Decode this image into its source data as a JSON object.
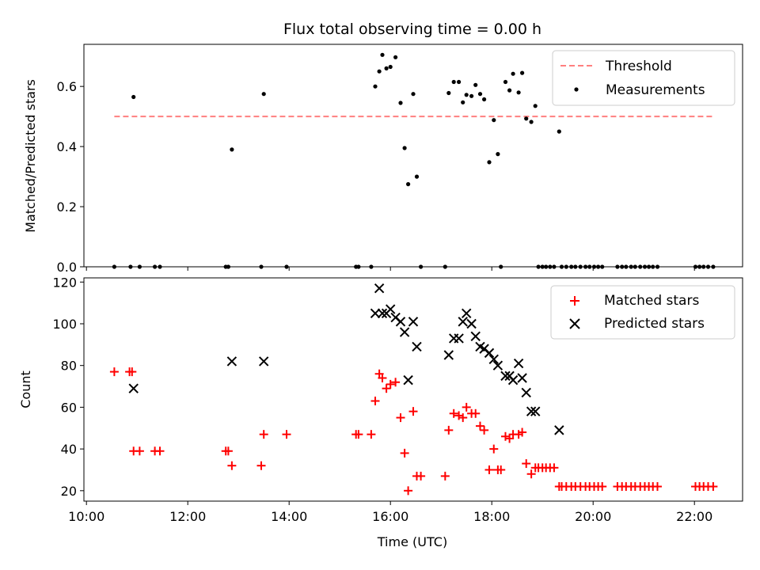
{
  "chart_data": [
    {
      "type": "scatter",
      "title": "Flux total observing time = 0.00 h",
      "xlabel": "",
      "ylabel": "Matched/Predicted stars",
      "xlim_hours": [
        9.95,
        22.95
      ],
      "ylim": [
        0,
        0.74
      ],
      "yticks": [
        0.0,
        0.2,
        0.4,
        0.6
      ],
      "ytick_labels": [
        "0.0",
        "0.2",
        "0.4",
        "0.6"
      ],
      "legend_position": "top-right",
      "threshold": {
        "name": "Threshold",
        "y": 0.5,
        "x_range": [
          10.55,
          22.4
        ],
        "color": "#ff7f7f"
      },
      "series": [
        {
          "name": "Measurements",
          "color": "#000000",
          "marker": "dot",
          "points": [
            [
              10.55,
              0
            ],
            [
              10.87,
              0
            ],
            [
              10.93,
              0.565
            ],
            [
              11.05,
              0
            ],
            [
              11.35,
              0
            ],
            [
              11.45,
              0
            ],
            [
              12.75,
              0
            ],
            [
              12.8,
              0
            ],
            [
              12.87,
              0.39
            ],
            [
              13.45,
              0
            ],
            [
              13.5,
              0.575
            ],
            [
              13.95,
              0
            ],
            [
              15.32,
              0
            ],
            [
              15.37,
              0
            ],
            [
              15.62,
              0
            ],
            [
              15.7,
              0.6
            ],
            [
              15.78,
              0.65
            ],
            [
              15.84,
              0.705
            ],
            [
              15.92,
              0.66
            ],
            [
              16.0,
              0.665
            ],
            [
              16.1,
              0.697
            ],
            [
              16.2,
              0.545
            ],
            [
              16.28,
              0.395
            ],
            [
              16.35,
              0.275
            ],
            [
              16.45,
              0.575
            ],
            [
              16.52,
              0.3
            ],
            [
              16.6,
              0
            ],
            [
              17.08,
              0
            ],
            [
              17.15,
              0.578
            ],
            [
              17.25,
              0.615
            ],
            [
              17.35,
              0.615
            ],
            [
              17.43,
              0.547
            ],
            [
              17.5,
              0.572
            ],
            [
              17.6,
              0.568
            ],
            [
              17.68,
              0.605
            ],
            [
              17.77,
              0.575
            ],
            [
              17.85,
              0.557
            ],
            [
              17.95,
              0.348
            ],
            [
              18.04,
              0.488
            ],
            [
              18.12,
              0.375
            ],
            [
              18.18,
              0
            ],
            [
              18.27,
              0.615
            ],
            [
              18.35,
              0.587
            ],
            [
              18.42,
              0.642
            ],
            [
              18.53,
              0.58
            ],
            [
              18.6,
              0.645
            ],
            [
              18.68,
              0.493
            ],
            [
              18.78,
              0.482
            ],
            [
              18.86,
              0.535
            ],
            [
              18.92,
              0
            ],
            [
              19.0,
              0
            ],
            [
              19.07,
              0
            ],
            [
              19.15,
              0
            ],
            [
              19.23,
              0
            ],
            [
              19.33,
              0.45
            ],
            [
              19.38,
              0
            ],
            [
              19.47,
              0
            ],
            [
              19.57,
              0
            ],
            [
              19.65,
              0
            ],
            [
              19.75,
              0
            ],
            [
              19.85,
              0
            ],
            [
              19.93,
              0
            ],
            [
              20.02,
              0
            ],
            [
              20.1,
              0
            ],
            [
              20.18,
              0
            ],
            [
              20.48,
              0
            ],
            [
              20.57,
              0
            ],
            [
              20.65,
              0
            ],
            [
              20.75,
              0
            ],
            [
              20.83,
              0
            ],
            [
              20.93,
              0
            ],
            [
              21.02,
              0
            ],
            [
              21.1,
              0
            ],
            [
              21.18,
              0
            ],
            [
              21.27,
              0
            ],
            [
              22.02,
              0
            ],
            [
              22.1,
              0
            ],
            [
              22.18,
              0
            ],
            [
              22.27,
              0
            ],
            [
              22.37,
              0
            ]
          ]
        }
      ]
    },
    {
      "type": "scatter",
      "title": "",
      "xlabel": "Time (UTC)",
      "ylabel": "Count",
      "xlim_hours": [
        9.95,
        22.95
      ],
      "xticks_hours": [
        10,
        12,
        14,
        16,
        18,
        20,
        22
      ],
      "xtick_labels": [
        "10:00",
        "12:00",
        "14:00",
        "16:00",
        "18:00",
        "20:00",
        "22:00"
      ],
      "ylim": [
        15,
        122
      ],
      "yticks": [
        20,
        40,
        60,
        80,
        100,
        120
      ],
      "ytick_labels": [
        "20",
        "40",
        "60",
        "80",
        "100",
        "120"
      ],
      "legend_position": "top-right",
      "series": [
        {
          "name": "Matched stars",
          "color": "#ff0000",
          "marker": "plus",
          "points": [
            [
              10.55,
              77
            ],
            [
              10.85,
              77
            ],
            [
              10.9,
              77
            ],
            [
              10.93,
              39
            ],
            [
              11.05,
              39
            ],
            [
              11.35,
              39
            ],
            [
              11.45,
              39
            ],
            [
              12.75,
              39
            ],
            [
              12.8,
              39
            ],
            [
              12.87,
              32
            ],
            [
              13.45,
              32
            ],
            [
              13.5,
              47
            ],
            [
              13.95,
              47
            ],
            [
              15.32,
              47
            ],
            [
              15.37,
              47
            ],
            [
              15.62,
              47
            ],
            [
              15.7,
              63
            ],
            [
              15.78,
              76
            ],
            [
              15.84,
              74
            ],
            [
              15.92,
              69
            ],
            [
              16.0,
              71
            ],
            [
              16.1,
              72
            ],
            [
              16.2,
              55
            ],
            [
              16.28,
              38
            ],
            [
              16.35,
              20
            ],
            [
              16.45,
              58
            ],
            [
              16.52,
              27
            ],
            [
              16.6,
              27
            ],
            [
              17.08,
              27
            ],
            [
              17.15,
              49
            ],
            [
              17.25,
              57
            ],
            [
              17.35,
              56
            ],
            [
              17.43,
              55
            ],
            [
              17.5,
              60
            ],
            [
              17.6,
              57
            ],
            [
              17.68,
              57
            ],
            [
              17.77,
              51
            ],
            [
              17.85,
              49
            ],
            [
              17.95,
              30
            ],
            [
              18.04,
              40
            ],
            [
              18.12,
              30
            ],
            [
              18.18,
              30
            ],
            [
              18.27,
              46
            ],
            [
              18.35,
              45
            ],
            [
              18.42,
              47
            ],
            [
              18.53,
              47
            ],
            [
              18.6,
              48
            ],
            [
              18.68,
              33
            ],
            [
              18.78,
              28
            ],
            [
              18.86,
              31
            ],
            [
              18.92,
              31
            ],
            [
              19.0,
              31
            ],
            [
              19.07,
              31
            ],
            [
              19.15,
              31
            ],
            [
              19.23,
              31
            ],
            [
              19.33,
              22
            ],
            [
              19.38,
              22
            ],
            [
              19.47,
              22
            ],
            [
              19.57,
              22
            ],
            [
              19.65,
              22
            ],
            [
              19.75,
              22
            ],
            [
              19.85,
              22
            ],
            [
              19.93,
              22
            ],
            [
              20.02,
              22
            ],
            [
              20.1,
              22
            ],
            [
              20.18,
              22
            ],
            [
              20.48,
              22
            ],
            [
              20.57,
              22
            ],
            [
              20.65,
              22
            ],
            [
              20.75,
              22
            ],
            [
              20.83,
              22
            ],
            [
              20.93,
              22
            ],
            [
              21.02,
              22
            ],
            [
              21.1,
              22
            ],
            [
              21.18,
              22
            ],
            [
              21.27,
              22
            ],
            [
              22.02,
              22
            ],
            [
              22.1,
              22
            ],
            [
              22.18,
              22
            ],
            [
              22.27,
              22
            ],
            [
              22.37,
              22
            ]
          ]
        },
        {
          "name": "Predicted stars",
          "color": "#000000",
          "marker": "x",
          "points": [
            [
              10.93,
              69
            ],
            [
              12.87,
              82
            ],
            [
              13.5,
              82
            ],
            [
              15.7,
              105
            ],
            [
              15.78,
              117
            ],
            [
              15.84,
              105
            ],
            [
              15.92,
              105
            ],
            [
              16.0,
              107
            ],
            [
              16.1,
              103
            ],
            [
              16.2,
              101
            ],
            [
              16.28,
              96
            ],
            [
              16.35,
              73
            ],
            [
              16.45,
              101
            ],
            [
              16.52,
              89
            ],
            [
              17.15,
              85
            ],
            [
              17.25,
              93
            ],
            [
              17.35,
              93
            ],
            [
              17.43,
              101
            ],
            [
              17.5,
              105
            ],
            [
              17.6,
              100
            ],
            [
              17.68,
              94
            ],
            [
              17.77,
              89
            ],
            [
              17.85,
              88
            ],
            [
              17.95,
              86
            ],
            [
              18.04,
              83
            ],
            [
              18.12,
              80
            ],
            [
              18.27,
              75
            ],
            [
              18.35,
              75
            ],
            [
              18.42,
              73
            ],
            [
              18.53,
              81
            ],
            [
              18.6,
              74
            ],
            [
              18.68,
              67
            ],
            [
              18.78,
              58
            ],
            [
              18.86,
              58
            ],
            [
              19.33,
              49
            ]
          ]
        }
      ]
    }
  ]
}
